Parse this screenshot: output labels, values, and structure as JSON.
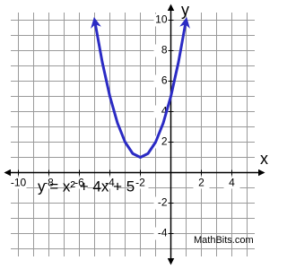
{
  "chart_data": {
    "type": "line",
    "x": [
      -5,
      -4.5,
      -4,
      -3.5,
      -3,
      -2.5,
      -2,
      -1.5,
      -1,
      -0.5,
      0,
      0.5,
      1
    ],
    "values": [
      10,
      7.25,
      5,
      3.25,
      2,
      1.25,
      1,
      1.25,
      2,
      3.25,
      5,
      7.25,
      10
    ],
    "color": "#2b2bc4",
    "xlim": [
      -10.5,
      5.5
    ],
    "ylim": [
      -5.5,
      10.5
    ],
    "xticks": [
      -10,
      -8,
      -6,
      -4,
      -2,
      2,
      4
    ],
    "yticks": [
      -4,
      -2,
      2,
      4,
      6,
      8,
      10
    ],
    "xgrid": [
      -10,
      -9,
      -8,
      -7,
      -6,
      -5,
      -4,
      -3,
      -2,
      -1,
      0,
      1,
      2,
      3,
      4,
      5
    ],
    "ygrid": [
      -5,
      -4,
      -3,
      -2,
      -1,
      0,
      1,
      2,
      3,
      4,
      5,
      6,
      7,
      8,
      9,
      10
    ],
    "grid": true,
    "xlabel": "x",
    "ylabel": "y",
    "annotation": "y = x² + 4x + 5",
    "credit": "MathBits.com"
  }
}
